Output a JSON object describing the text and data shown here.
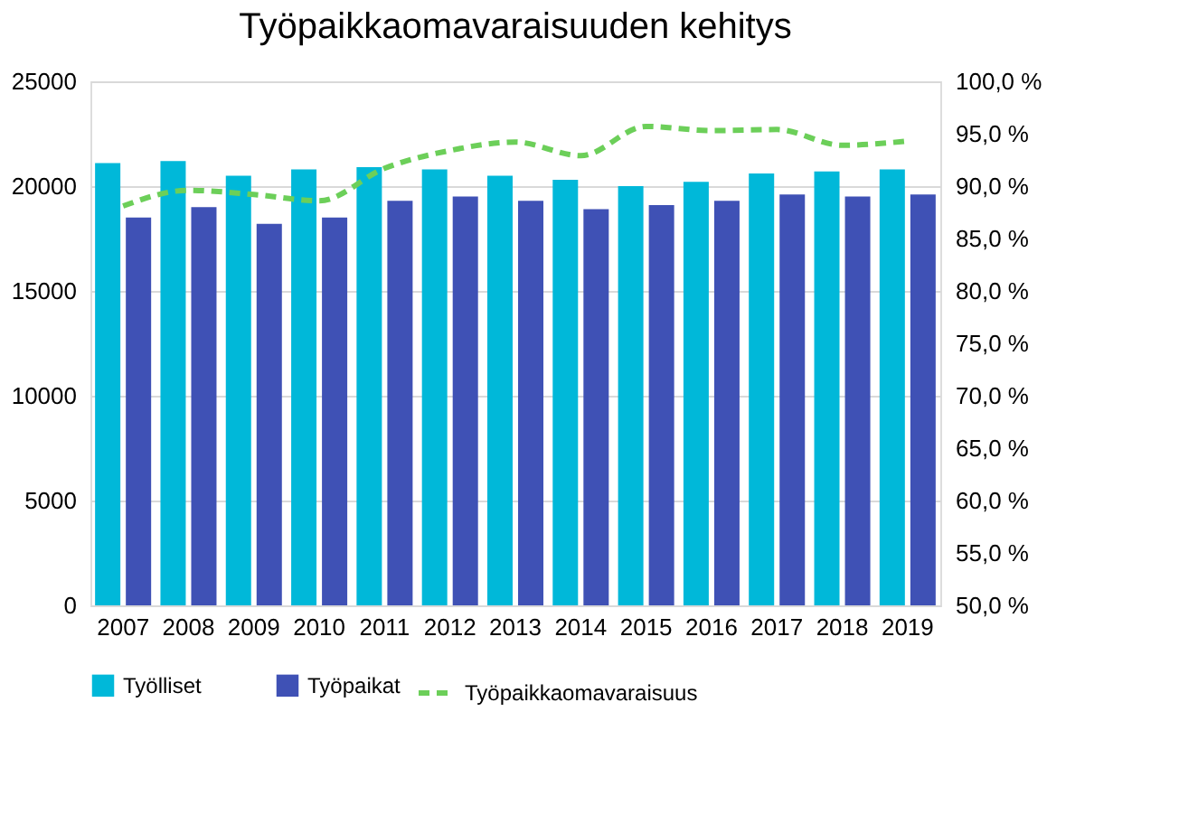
{
  "chart_data": {
    "type": "bar",
    "title": "Työpaikkaomavaraisuuden kehitys",
    "categories": [
      "2007",
      "2008",
      "2009",
      "2010",
      "2011",
      "2012",
      "2013",
      "2014",
      "2015",
      "2016",
      "2017",
      "2018",
      "2019"
    ],
    "series": [
      {
        "name": "Työlliset",
        "color": "#00b8d9",
        "values": [
          21100,
          21200,
          20500,
          20800,
          20900,
          20800,
          20500,
          20300,
          20000,
          20200,
          20600,
          20700,
          20800
        ]
      },
      {
        "name": "Työpaikat",
        "color": "#3f51b5",
        "values": [
          18500,
          19000,
          18200,
          18500,
          19300,
          19500,
          19300,
          18900,
          19100,
          19300,
          19600,
          19500,
          19600
        ]
      },
      {
        "name": "Työpaikkaomavaraisuus",
        "type": "line",
        "axis": "y2",
        "line_style": "dashed",
        "color": "#6ccf59",
        "values": [
          88.1,
          89.6,
          89.2,
          88.6,
          91.7,
          93.4,
          94.2,
          92.9,
          95.7,
          95.3,
          95.4,
          93.9,
          94.3
        ]
      }
    ],
    "ylim": [
      0,
      25000
    ],
    "yticks": [
      0,
      5000,
      10000,
      15000,
      20000,
      25000
    ],
    "y2lim": [
      50,
      100
    ],
    "y2ticks": [
      {
        "value": 50,
        "label": "50,0 %"
      },
      {
        "value": 55,
        "label": "55,0 %"
      },
      {
        "value": 60,
        "label": "60,0 %"
      },
      {
        "value": 65,
        "label": "65,0 %"
      },
      {
        "value": 70,
        "label": "70,0 %"
      },
      {
        "value": 75,
        "label": "75,0 %"
      },
      {
        "value": 80,
        "label": "80,0 %"
      },
      {
        "value": 85,
        "label": "85,0 %"
      },
      {
        "value": 90,
        "label": "90,0 %"
      },
      {
        "value": 95,
        "label": "95,0 %"
      },
      {
        "value": 100,
        "label": "100,0 %"
      }
    ],
    "grid": "y",
    "legend": "bottom"
  }
}
